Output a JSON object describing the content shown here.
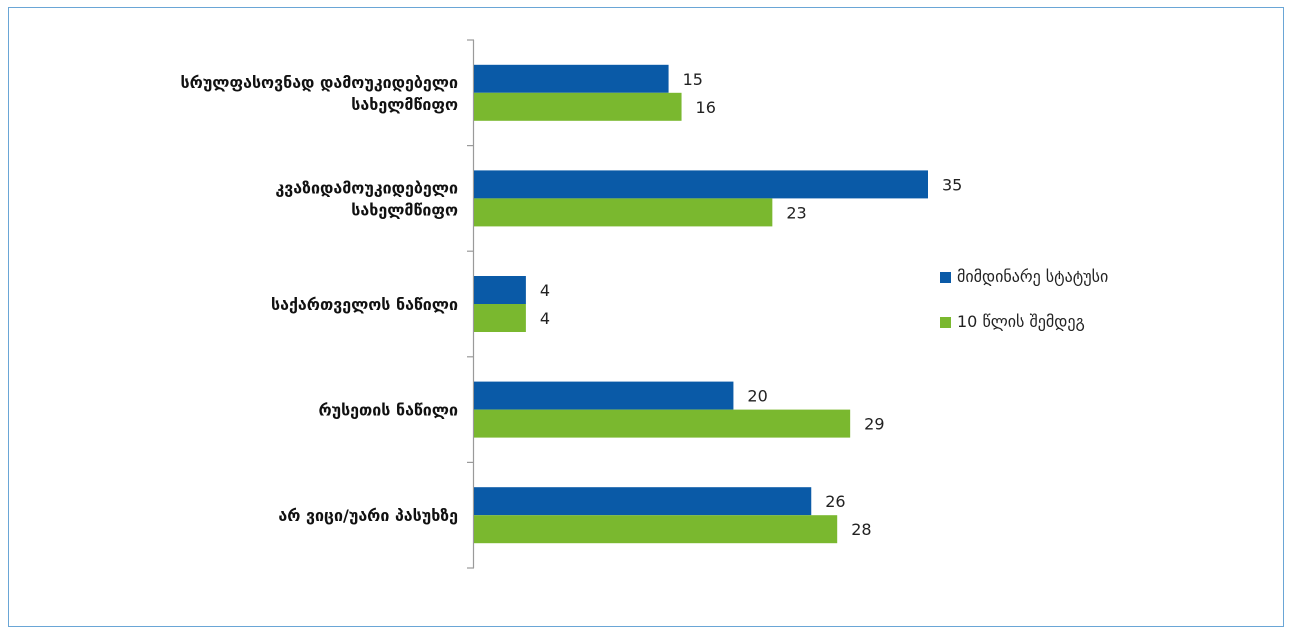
{
  "chart_data": {
    "type": "bar",
    "orientation": "horizontal",
    "categories": [
      [
        "სრულფასოვნად დამოუკიდებელი",
        "სახელმწიფო"
      ],
      [
        "კვაზიდამოუკიდებელი",
        "სახელმწიფო"
      ],
      [
        "საქართველოს ნაწილი"
      ],
      [
        "რუსეთის ნაწილი"
      ],
      [
        "არ ვიცი/უარი პასუხზე"
      ]
    ],
    "series": [
      {
        "name": "მიმდინარე სტატუსი",
        "color": "#0a5aa7",
        "values": [
          15,
          35,
          4,
          20,
          26
        ]
      },
      {
        "name": "10 წლის შემდეგ",
        "color": "#7ab82f",
        "values": [
          16,
          23,
          4,
          29,
          28
        ]
      }
    ],
    "xlim": [
      0,
      40
    ],
    "grid": false,
    "legend_position": "right"
  }
}
